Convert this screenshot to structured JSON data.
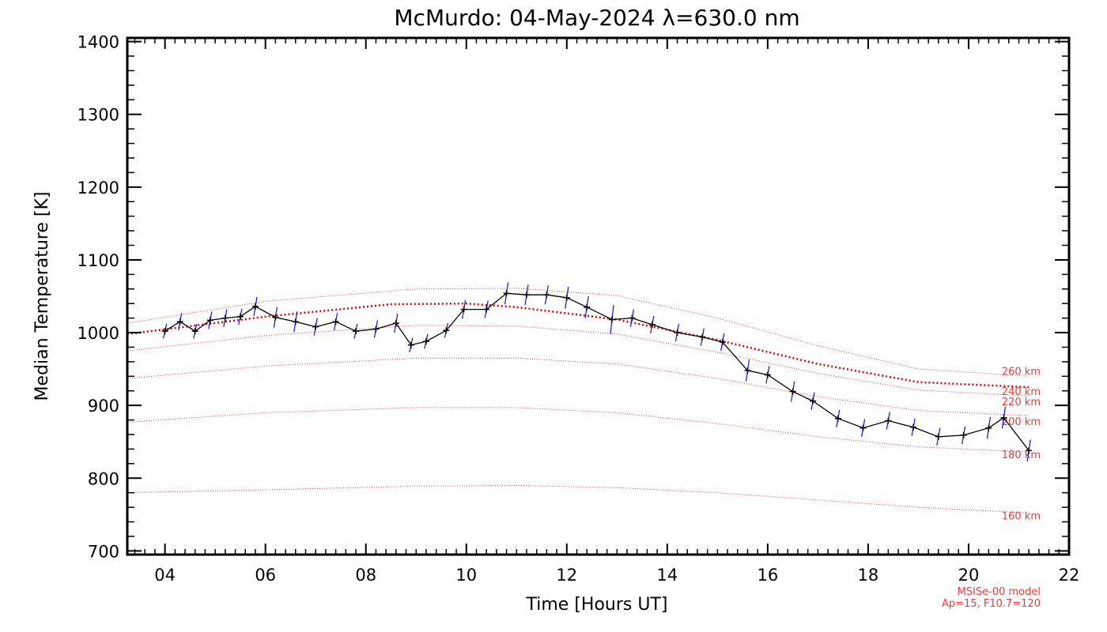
{
  "chart_data": {
    "type": "line",
    "title": "McMurdo: 04-May-2024 λ=630.0 nm",
    "xlabel": "Time [Hours UT]",
    "ylabel": "Median Temperature [K]",
    "xlim": [
      3.25,
      22.0
    ],
    "ylim": [
      695,
      1405
    ],
    "xticks": [
      {
        "value": 4,
        "label": "04"
      },
      {
        "value": 6,
        "label": "06"
      },
      {
        "value": 8,
        "label": "08"
      },
      {
        "value": 10,
        "label": "10"
      },
      {
        "value": 12,
        "label": "12"
      },
      {
        "value": 14,
        "label": "14"
      },
      {
        "value": 16,
        "label": "16"
      },
      {
        "value": 18,
        "label": "18"
      },
      {
        "value": 20,
        "label": "20"
      },
      {
        "value": 22,
        "label": "22"
      }
    ],
    "yticks": [
      700,
      800,
      900,
      1000,
      1100,
      1200,
      1300,
      1400
    ],
    "grid": false,
    "colors": {
      "data": "#000000",
      "errorbar": "#1010e0",
      "model": "#e83a3a",
      "model_main": "#e00000"
    },
    "series": [
      {
        "kind": "measurement",
        "x": [
          4.0,
          4.3,
          4.6,
          4.9,
          5.2,
          5.5,
          5.8,
          6.2,
          6.6,
          7.0,
          7.4,
          7.8,
          8.2,
          8.6,
          8.9,
          9.2,
          9.6,
          9.95,
          10.4,
          10.8,
          11.2,
          11.6,
          12.0,
          12.4,
          12.9,
          13.3,
          13.7,
          14.2,
          14.7,
          15.1,
          15.6,
          16.0,
          16.5,
          16.9,
          17.4,
          17.9,
          18.4,
          18.9,
          19.4,
          19.9,
          20.4,
          20.7,
          21.2
        ],
        "y": [
          1002,
          1015,
          1002,
          1017,
          1020,
          1022,
          1036,
          1021,
          1015,
          1008,
          1015,
          1002,
          1005,
          1013,
          983,
          988,
          1003,
          1032,
          1032,
          1054,
          1052,
          1052,
          1048,
          1035,
          1018,
          1020,
          1011,
          1000,
          994,
          987,
          948,
          942,
          919,
          906,
          882,
          869,
          879,
          870,
          857,
          859,
          869,
          883,
          838
        ],
        "err": [
          10,
          12,
          10,
          12,
          12,
          11,
          13,
          14,
          14,
          12,
          12,
          10,
          12,
          13,
          10,
          10,
          10,
          13,
          12,
          15,
          14,
          13,
          15,
          15,
          20,
          12,
          12,
          12,
          12,
          12,
          15,
          12,
          14,
          12,
          12,
          12,
          12,
          12,
          12,
          12,
          15,
          15,
          15
        ]
      }
    ],
    "model_curves": [
      {
        "label": "160 km",
        "main": false,
        "x": [
          3.25,
          6,
          9,
          11,
          13,
          15,
          17,
          19,
          21.2
        ],
        "y": [
          780,
          784,
          789,
          790,
          787,
          780,
          770,
          760,
          752
        ]
      },
      {
        "label": "180 km",
        "main": false,
        "x": [
          3.25,
          6,
          9,
          11,
          13,
          15,
          17,
          19,
          21.2
        ],
        "y": [
          877,
          890,
          897,
          897,
          890,
          875,
          857,
          843,
          836
        ]
      },
      {
        "label": "200 km",
        "main": false,
        "x": [
          3.25,
          6,
          9,
          11,
          13,
          15,
          17,
          19,
          21.2
        ],
        "y": [
          937,
          954,
          965,
          965,
          957,
          937,
          912,
          893,
          886
        ]
      },
      {
        "label": "220 km",
        "main": false,
        "x": [
          3.25,
          6,
          9,
          11,
          13,
          15,
          17,
          19,
          21.2
        ],
        "y": [
          975,
          996,
          1010,
          1009,
          998,
          973,
          944,
          921,
          913
        ]
      },
      {
        "label": "240 km",
        "main": true,
        "x": [
          3.25,
          6,
          8.5,
          10,
          11,
          13,
          15,
          17,
          19,
          21.2
        ],
        "y": [
          998,
          1022,
          1039,
          1040,
          1035,
          1018,
          990,
          957,
          932,
          925
        ]
      },
      {
        "label": "260 km",
        "main": false,
        "x": [
          3.25,
          6,
          9,
          11,
          13,
          15,
          17,
          19,
          21.2
        ],
        "y": [
          1013,
          1043,
          1060,
          1061,
          1051,
          1020,
          982,
          950,
          940
        ]
      }
    ],
    "annotations": [
      {
        "text": "MSISe-00 model"
      },
      {
        "text": "Ap=15, F10.7=120"
      }
    ]
  }
}
